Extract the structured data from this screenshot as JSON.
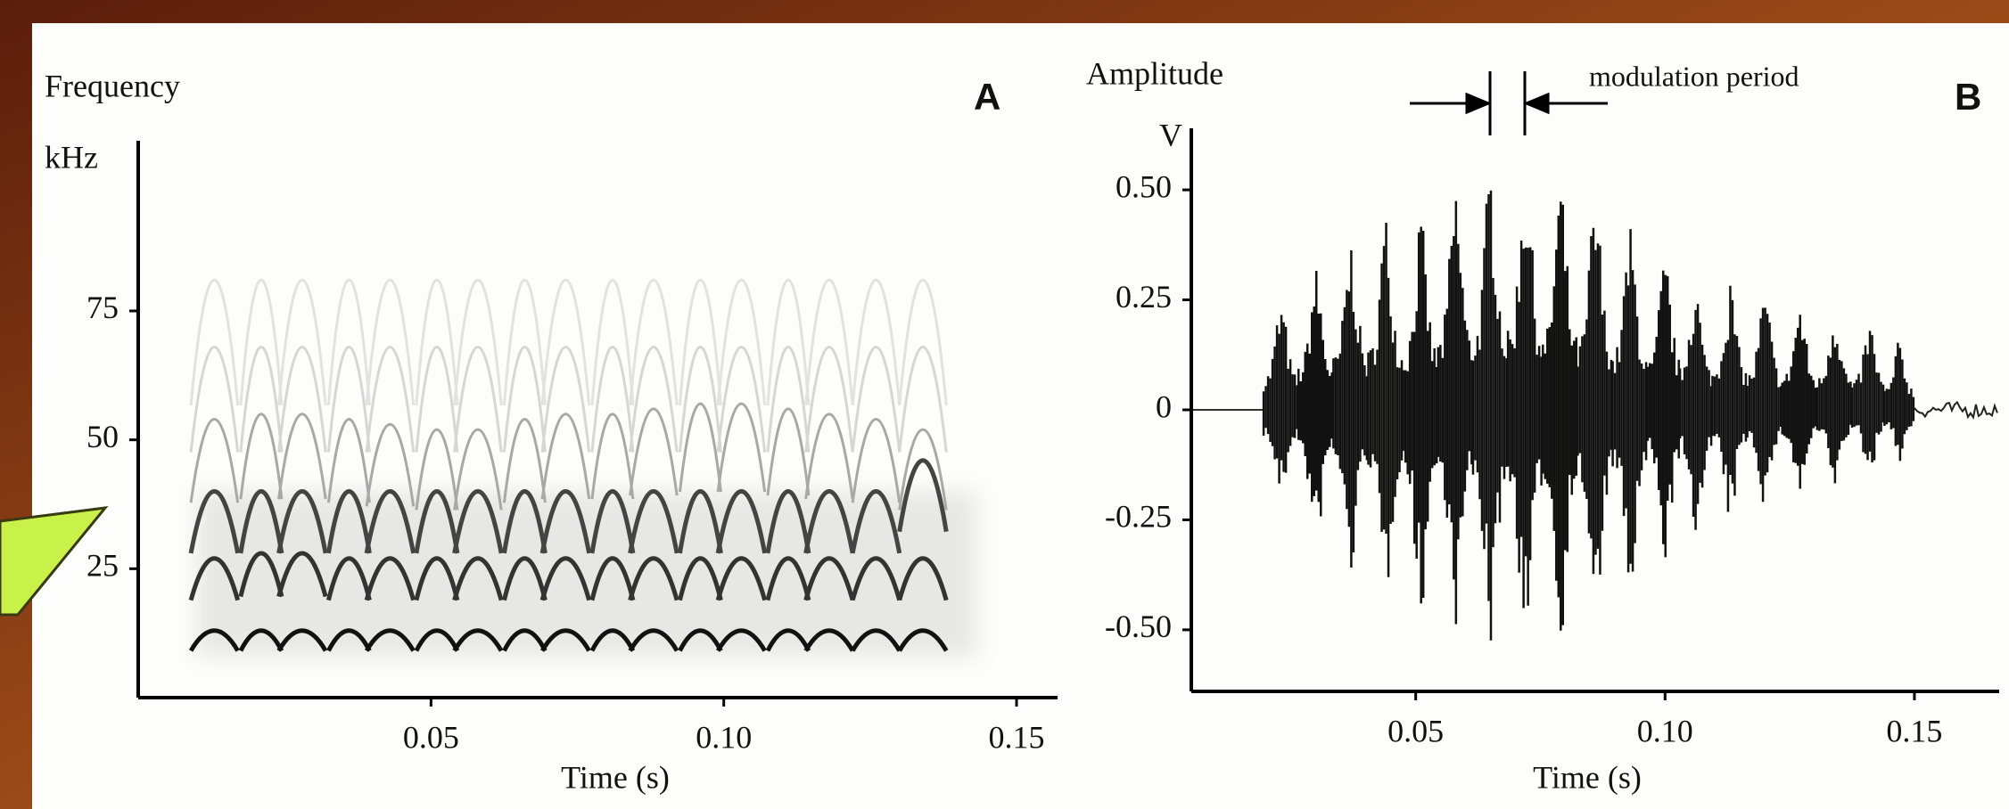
{
  "chart_data": [
    {
      "type": "spectrogram",
      "panel_label": "A",
      "ylabel": "Frequency",
      "yunit": "kHz",
      "xlabel": "Time (s)",
      "xlim": [
        0,
        0.157
      ],
      "xticks": [
        0.05,
        {
          "value": 0.1,
          "label": "0.10"
        },
        0.15
      ],
      "ylim": [
        0,
        108
      ],
      "yticks": [
        25,
        50,
        75
      ],
      "x": [
        0.013,
        0.021,
        0.028,
        0.036,
        0.043,
        0.051,
        0.058,
        0.066,
        0.073,
        0.081,
        0.088,
        0.096,
        0.103,
        0.111,
        0.118,
        0.126,
        0.134
      ],
      "series": [
        {
          "color": "#111111",
          "values": [
            13,
            13,
            13,
            13,
            13,
            13,
            13,
            13,
            13,
            13,
            13,
            13,
            13,
            13,
            13,
            13,
            13
          ]
        },
        {
          "color": "#333333",
          "values": [
            27,
            28,
            28,
            27,
            27,
            27,
            27,
            27,
            27,
            27,
            27,
            27,
            27,
            27,
            27,
            27,
            27
          ]
        },
        {
          "color": "#444444",
          "values": [
            40,
            40,
            40,
            40,
            40,
            40,
            40,
            40,
            40,
            40,
            40,
            40,
            40,
            40,
            40,
            40,
            46
          ]
        },
        {
          "color": "#a8a8a8",
          "values": [
            54,
            55,
            55,
            54,
            53,
            52,
            52,
            54,
            55,
            55,
            56,
            57,
            57,
            56,
            55,
            54,
            52
          ]
        },
        {
          "color": "#d6d6d6",
          "values": [
            68,
            68,
            68,
            68,
            68,
            68,
            68,
            68,
            68,
            68,
            68,
            68,
            68,
            68,
            68,
            68,
            68
          ]
        },
        {
          "color": "#e2e2e2",
          "values": [
            81,
            81,
            81,
            81,
            81,
            81,
            81,
            81,
            81,
            81,
            81,
            81,
            81,
            81,
            81,
            81,
            81
          ]
        }
      ]
    },
    {
      "type": "waveform",
      "panel_label": "B",
      "ylabel": "Amplitude",
      "yunit": "V",
      "xlabel": "Time (s)",
      "annotation": "modulation period",
      "xlim": [
        0.005,
        0.167
      ],
      "xticks": [
        0.05,
        {
          "value": 0.1,
          "label": "0.10"
        },
        0.15
      ],
      "ylim": [
        -0.64,
        0.64
      ],
      "yticks": [
        {
          "value": 0.5,
          "label": "0.50"
        },
        0.25,
        0,
        -0.25,
        {
          "value": -0.5,
          "label": "-0.50"
        }
      ],
      "x": [
        0.023,
        0.03,
        0.037,
        0.044,
        0.051,
        0.058,
        0.065,
        0.072,
        0.079,
        0.086,
        0.093,
        0.1,
        0.106,
        0.113,
        0.12,
        0.127,
        0.134,
        0.141,
        0.147
      ],
      "series": [
        {
          "color": "#111111",
          "values": [
            0.25,
            0.33,
            0.4,
            0.45,
            0.44,
            0.53,
            0.57,
            0.59,
            0.54,
            0.5,
            0.42,
            0.35,
            0.3,
            0.3,
            0.27,
            0.25,
            0.24,
            0.2,
            0.16
          ]
        },
        {
          "color": "#111111",
          "values": [
            -0.2,
            -0.32,
            -0.38,
            -0.43,
            -0.47,
            -0.5,
            -0.55,
            -0.57,
            -0.53,
            -0.52,
            -0.44,
            -0.35,
            -0.3,
            -0.26,
            -0.22,
            -0.2,
            -0.18,
            -0.15,
            -0.12
          ]
        }
      ]
    }
  ]
}
